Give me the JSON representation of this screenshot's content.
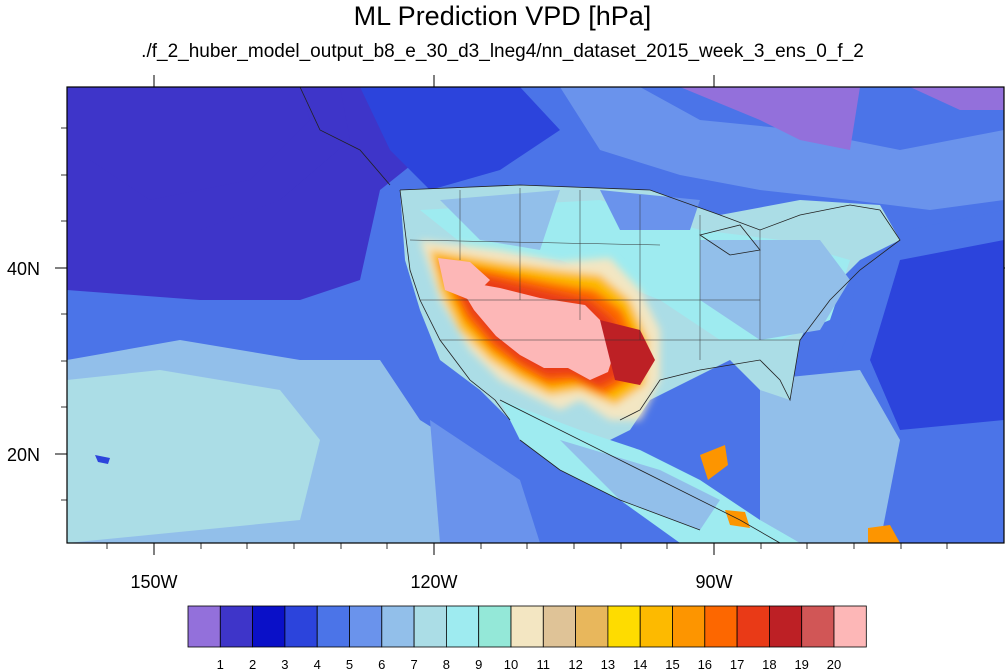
{
  "title": "ML Prediction VPD [hPa]",
  "subtitle": "./f_2_huber_model_output_b8_e_30_d3_lneg4/nn_dataset_2015_week_3_ens_0_f_2",
  "axes": {
    "lon_labels": [
      "150W",
      "120W",
      "90W"
    ],
    "lat_labels": [
      "40N",
      "20N"
    ]
  },
  "colorbar": {
    "labels": [
      "1",
      "2",
      "3",
      "4",
      "5",
      "6",
      "7",
      "8",
      "9",
      "10",
      "11",
      "12",
      "13",
      "14",
      "15",
      "16",
      "17",
      "18",
      "19",
      "20"
    ],
    "colors": [
      "#9370db",
      "#3e35c9",
      "#0a10c8",
      "#2c44dc",
      "#4b74e8",
      "#6a93ec",
      "#92bfea",
      "#abdde6",
      "#9eebf0",
      "#94e8d8",
      "#f3e6c2",
      "#dfc397",
      "#e8b75c",
      "#fedc00",
      "#fdba00",
      "#fd9500",
      "#fd6700",
      "#e93a17",
      "#bd2025",
      "#d15656",
      "#fdb7b7"
    ]
  },
  "legend": {
    "background": "#2c44dc",
    "ocean": "#4b74e8"
  }
}
